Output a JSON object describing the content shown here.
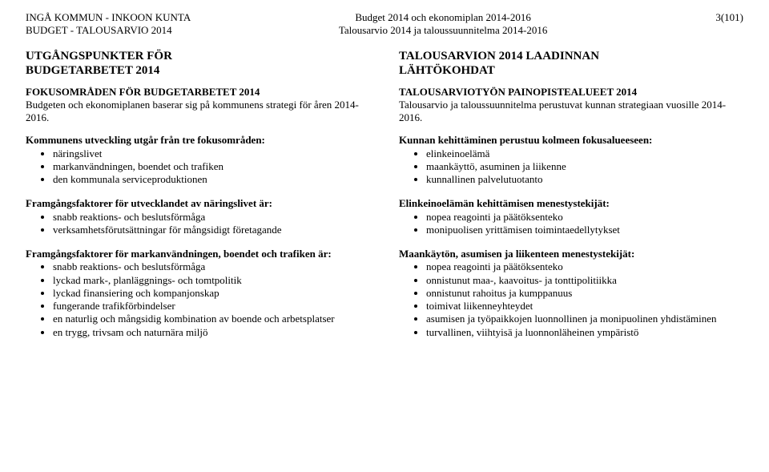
{
  "header": {
    "left_line1": "INGÅ KOMMUN - INKOON KUNTA",
    "left_line2": "BUDGET - TALOUSARVIO 2014",
    "center_line1": "Budget 2014 och ekonomiplan 2014-2016",
    "center_line2": "Talousarvio 2014 ja taloussuunnitelma 2014-2016",
    "page_num": "3(101)"
  },
  "left": {
    "title_line1": "UTGÅNGSPUNKTER FÖR",
    "title_line2": "BUDGETARBETET 2014",
    "sub1_bold": "FOKUSOMRÅDEN FÖR BUDGETARBETET 2014",
    "sub1_text": "Budgeten och ekonomiplanen baserar sig på kommunens strategi för åren 2014-2016.",
    "list1_lead": "Kommunens utveckling utgår från tre fokusområden:",
    "list1": [
      "näringslivet",
      "markanvändningen, boendet och trafiken",
      "den kommunala serviceproduktionen"
    ],
    "list2_lead": "Framgångsfaktorer för utvecklandet av näringslivet är:",
    "list2": [
      "snabb reaktions- och beslutsförmåga",
      "verksamhetsförutsättningar för mångsidigt företagande"
    ],
    "list3_lead": "Framgångsfaktorer för markanvändningen, boendet och trafiken är:",
    "list3": [
      "snabb reaktions- och beslutsförmåga",
      "lyckad mark-, planläggnings- och tomtpolitik",
      "lyckad finansiering och kompanjonskap",
      "fungerande trafikförbindelser",
      "en naturlig och mångsidig kombination av boende och arbetsplatser",
      "en trygg, trivsam och naturnära miljö"
    ]
  },
  "right": {
    "title_line1": "TALOUSARVION 2014 LAADINNAN",
    "title_line2": "LÄHTÖKOHDAT",
    "sub1_bold": "TALOUSARVIOTYÖN PAINOPISTEALUEET 2014",
    "sub1_text": "Talousarvio ja taloussuunnitelma perustuvat kunnan strategiaan vuosille 2014-2016.",
    "list1_lead": "Kunnan kehittäminen perustuu kolmeen fokusalueeseen:",
    "list1": [
      "elinkeinoelämä",
      "maankäyttö, asuminen ja liikenne",
      "kunnallinen palvelutuotanto"
    ],
    "list2_lead": "Elinkeinoelämän kehittämisen menestystekijät:",
    "list2": [
      "nopea reagointi ja päätöksenteko",
      "monipuolisen yrittämisen toimintaedellytykset"
    ],
    "list3_lead": "Maankäytön, asumisen ja liikenteen menestystekijät:",
    "list3": [
      "nopea reagointi ja päätöksenteko",
      "onnistunut maa-, kaavoitus- ja tonttipolitiikka",
      "onnistunut rahoitus ja kumppanuus",
      "toimivat liikenneyhteydet",
      "asumisen ja työpaikkojen luonnollinen ja monipuolinen yhdistäminen",
      "turvallinen, viihtyisä ja luonnonläheinen ympäristö"
    ]
  }
}
